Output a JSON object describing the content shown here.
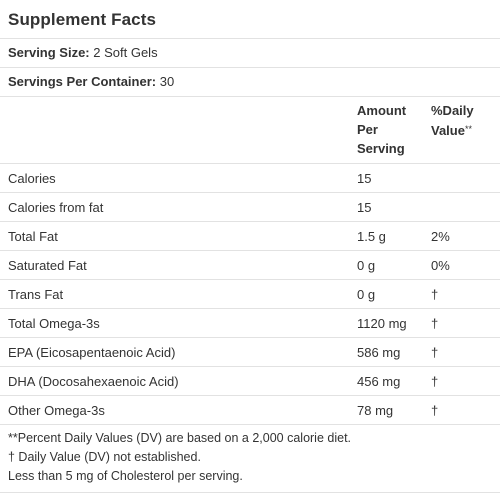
{
  "title": "Supplement Facts",
  "serving_size": {
    "label": "Serving Size:",
    "value": "2 Soft Gels"
  },
  "servings_per_container": {
    "label": "Servings Per Container:",
    "value": "30"
  },
  "columns": {
    "amount_line1": "Amount",
    "amount_line2": "Per",
    "amount_line3": "Serving",
    "dv_line1": "%Daily",
    "dv_line2": "Value",
    "dv_marker": "**"
  },
  "rows": [
    {
      "name": "Calories",
      "amount": "15",
      "dv": ""
    },
    {
      "name": "Calories from fat",
      "amount": "15",
      "dv": ""
    },
    {
      "name": "Total Fat",
      "amount": "1.5 g",
      "dv": "2%"
    },
    {
      "name": "Saturated Fat",
      "amount": "0 g",
      "dv": "0%"
    },
    {
      "name": "Trans Fat",
      "amount": "0 g",
      "dv": "†"
    },
    {
      "name": "Total Omega-3s",
      "amount": "1120 mg",
      "dv": "†"
    },
    {
      "name": "EPA (Eicosapentaenoic Acid)",
      "amount": "586 mg",
      "dv": "†"
    },
    {
      "name": "DHA (Docosahexaenoic Acid)",
      "amount": "456 mg",
      "dv": "†"
    },
    {
      "name": "Other Omega-3s",
      "amount": "78 mg",
      "dv": "†"
    }
  ],
  "footnotes": [
    "**Percent Daily Values (DV) are based on a 2,000 calorie diet.",
    "† Daily Value (DV) not established.",
    "Less than 5 mg of Cholesterol per serving."
  ]
}
